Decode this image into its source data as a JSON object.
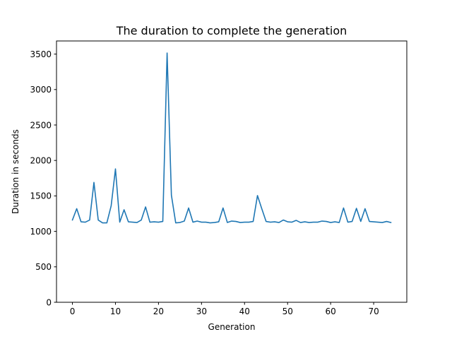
{
  "chart_data": {
    "type": "line",
    "title": "The duration to complete the generation",
    "xlabel": "Generation",
    "ylabel": "Duration in seconds",
    "xlim": [
      -3.7,
      77.7
    ],
    "ylim": [
      0,
      3685
    ],
    "xticks": [
      0,
      10,
      20,
      30,
      40,
      50,
      60,
      70
    ],
    "yticks": [
      0,
      500,
      1000,
      1500,
      2000,
      2500,
      3000,
      3500
    ],
    "grid": false,
    "series": [
      {
        "color": "#1f77b4",
        "x": [
          0,
          1,
          2,
          3,
          4,
          5,
          6,
          7,
          8,
          9,
          10,
          11,
          12,
          13,
          14,
          15,
          16,
          17,
          18,
          19,
          20,
          21,
          22,
          23,
          24,
          25,
          26,
          27,
          28,
          29,
          30,
          31,
          32,
          33,
          34,
          35,
          36,
          37,
          38,
          39,
          40,
          41,
          42,
          43,
          44,
          45,
          46,
          47,
          48,
          49,
          50,
          51,
          52,
          53,
          54,
          55,
          56,
          57,
          58,
          59,
          60,
          61,
          62,
          63,
          64,
          65,
          66,
          67,
          68,
          69,
          70,
          71,
          72,
          73,
          74
        ],
        "values": [
          1160,
          1320,
          1135,
          1130,
          1160,
          1690,
          1160,
          1120,
          1120,
          1360,
          1880,
          1130,
          1305,
          1135,
          1130,
          1125,
          1160,
          1345,
          1130,
          1135,
          1130,
          1140,
          3515,
          1510,
          1120,
          1125,
          1145,
          1330,
          1130,
          1145,
          1130,
          1130,
          1120,
          1125,
          1135,
          1330,
          1125,
          1145,
          1140,
          1125,
          1130,
          1130,
          1140,
          1505,
          1320,
          1140,
          1130,
          1135,
          1125,
          1160,
          1135,
          1130,
          1155,
          1125,
          1135,
          1125,
          1130,
          1130,
          1145,
          1140,
          1125,
          1135,
          1125,
          1330,
          1130,
          1140,
          1325,
          1140,
          1320,
          1140,
          1135,
          1130,
          1125,
          1140,
          1125
        ]
      }
    ]
  }
}
